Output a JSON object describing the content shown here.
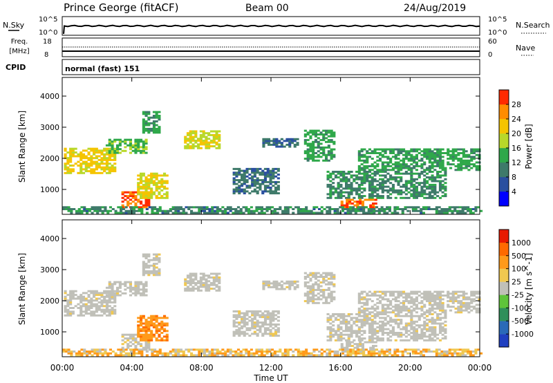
{
  "header": {
    "station": "Prince George (fitACF)",
    "beam": "Beam 00",
    "date": "24/Aug/2019"
  },
  "status_panels": {
    "nsky_label": "N.Sky",
    "nsearch_label": "N.Search",
    "nsky_ticks": [
      "10^5",
      "10^0"
    ],
    "nsearch_ticks": [
      "10^5",
      "10^0"
    ],
    "freq_label_1": "Freq.",
    "freq_label_2": "[MHz]",
    "freq_ticks": [
      "18",
      "8"
    ],
    "nave_label": "Nave",
    "nave_ticks": [
      "60",
      "0"
    ],
    "cpid_label": "CPID",
    "cpid_value": "normal (fast) 151"
  },
  "chart_data": [
    {
      "type": "heatmap",
      "name": "power",
      "ylabel": "Slant Range [km]",
      "yticks": [
        "4000",
        "3000",
        "2000",
        "1000"
      ],
      "ylim": [
        200,
        4600
      ],
      "xlim": [
        0,
        24
      ],
      "colorbar_label": "Power [dB]",
      "colorbar_ticks": [
        "28",
        "24",
        "20",
        "16",
        "12",
        "8",
        "4"
      ],
      "colors": [
        "#0000ff",
        "#2a4f9f",
        "#3e7a6a",
        "#2fa84a",
        "#b8d82a",
        "#f5c400",
        "#ff8c00",
        "#ff2a00"
      ]
    },
    {
      "type": "heatmap",
      "name": "velocity",
      "ylabel": "Slant Range [km]",
      "yticks": [
        "4000",
        "3000",
        "2000",
        "1000"
      ],
      "ylim": [
        200,
        4600
      ],
      "xlim": [
        0,
        24
      ],
      "colorbar_label": "Velocity [m s^-1]",
      "colorbar_ticks": [
        "1000",
        "500",
        "100",
        "25",
        "-25",
        "-100",
        "-500",
        "-1000"
      ],
      "colors": [
        "#2040c0",
        "#2a6ab8",
        "#2f8f5a",
        "#5ec43a",
        "#c0c0b8",
        "#f0c850",
        "#ff9a1a",
        "#ff6a00",
        "#e81a00"
      ]
    }
  ],
  "x_axis": {
    "ticks": [
      "00:00",
      "04:00",
      "08:00",
      "12:00",
      "16:00",
      "20:00",
      "00:00"
    ],
    "label": "Time UT"
  }
}
